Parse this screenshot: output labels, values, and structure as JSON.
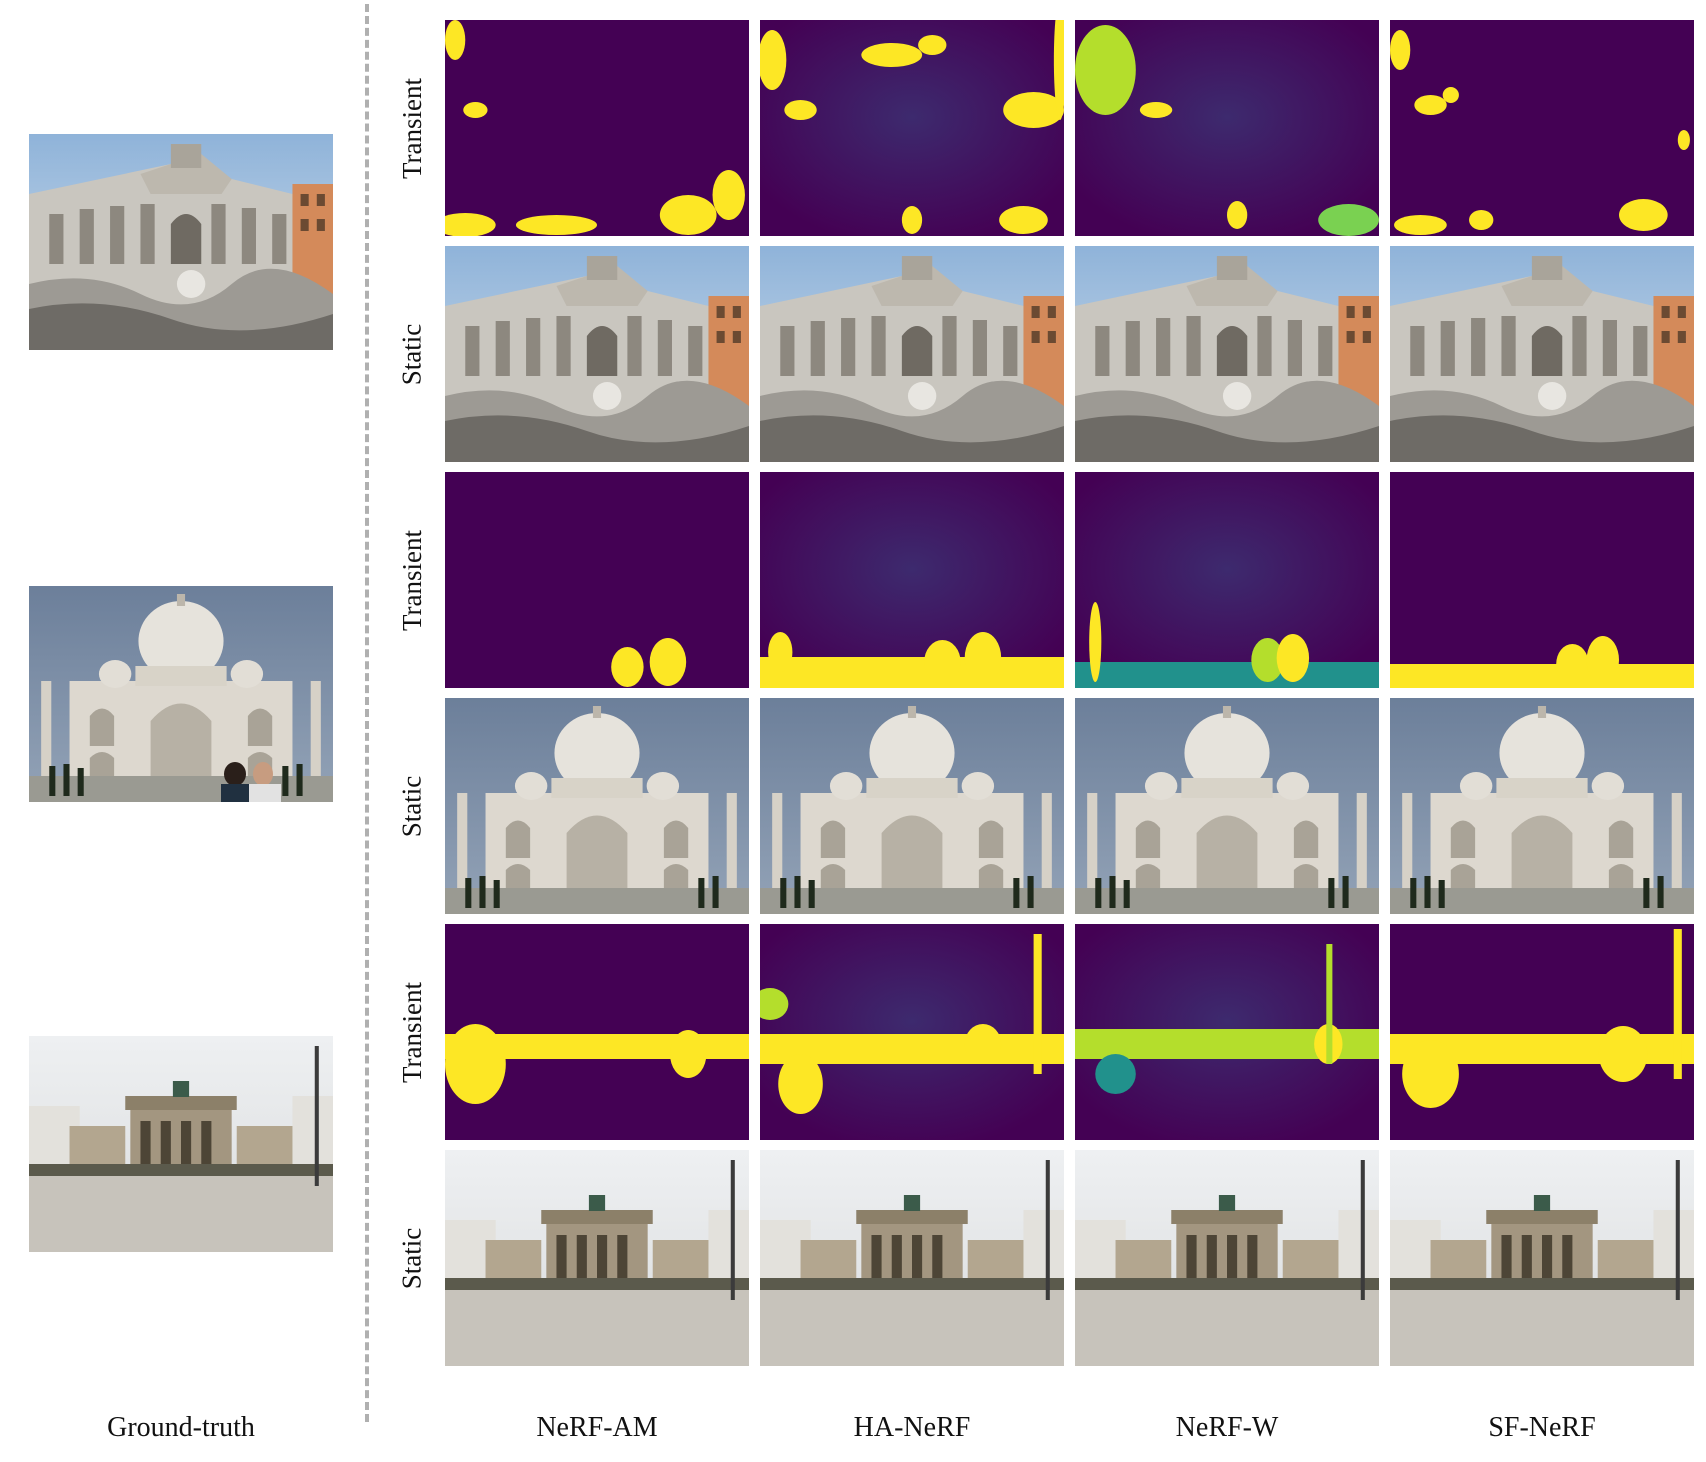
{
  "row_labels": {
    "trevi_transient": "Transient",
    "trevi_static": "Static",
    "taj_transient": "Transient",
    "taj_static": "Static",
    "brandenburg_transient": "Transient",
    "brandenburg_static": "Static"
  },
  "column_labels": {
    "ground_truth": "Ground-truth",
    "nerf_am": "NeRF-AM",
    "ha_nerf": "HA-NeRF",
    "nerf_w": "NeRF-W",
    "sf_nerf": "SF-NeRF"
  },
  "colors": {
    "mask_background": "#440154",
    "mask_foreground": "#fde725",
    "mask_mid": "#21918c",
    "sky_blue": "#a9c6e3",
    "sky_grey": "#7d90ab",
    "sky_white": "#e4e7ea",
    "stone": "#d8d4cb",
    "marble": "#e6e3dc",
    "ground": "#c9c5bd",
    "dashed_divider": "#b0b0b0"
  }
}
